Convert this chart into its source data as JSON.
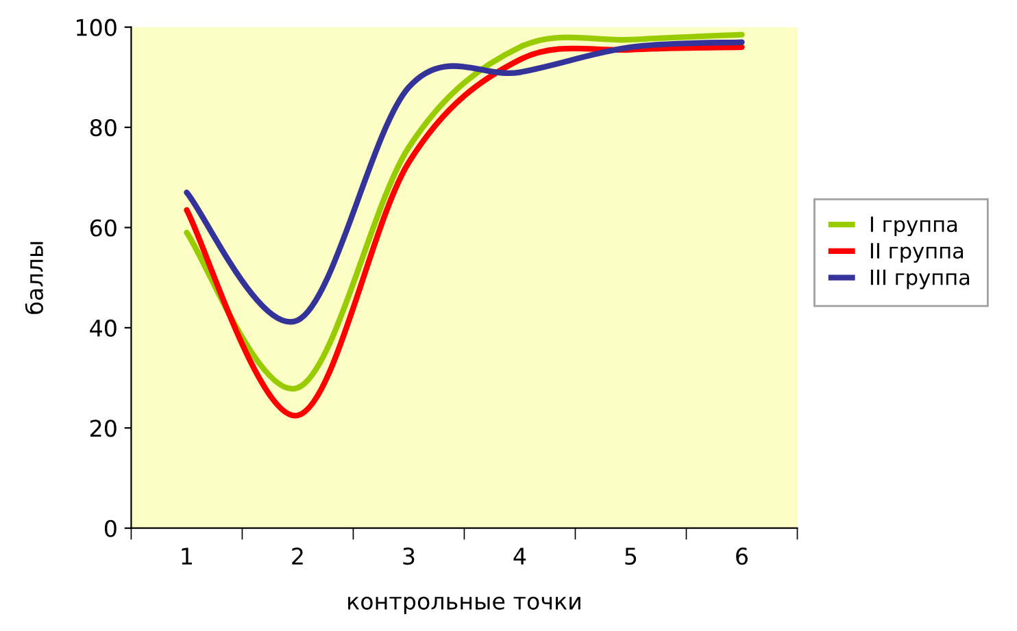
{
  "chart_data": {
    "type": "line",
    "xlabel": "контрольные точки",
    "ylabel": "баллы",
    "categories": [
      "1",
      "2",
      "3",
      "4",
      "5",
      "6"
    ],
    "series": [
      {
        "name": "I группа",
        "color": "#99cc00",
        "values": [
          59,
          28,
          76,
          96,
          97.5,
          98.5
        ]
      },
      {
        "name": "II группа",
        "color": "#ff0000",
        "values": [
          63.5,
          22.5,
          73,
          93.5,
          95.5,
          96
        ]
      },
      {
        "name": "III группа",
        "color": "#333399",
        "values": [
          67,
          41.5,
          88,
          91,
          96,
          97
        ]
      }
    ],
    "ylim": [
      0,
      100
    ],
    "yticks": [
      0,
      20,
      40,
      60,
      80,
      100
    ],
    "grid": false,
    "legend": "right",
    "marker": "none",
    "line_style": "solid"
  }
}
